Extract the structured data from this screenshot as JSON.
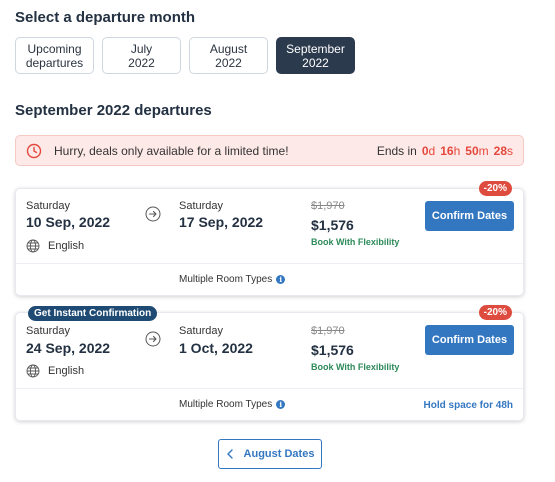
{
  "header": {
    "title": "Select a departure month"
  },
  "months": [
    {
      "line1": "Upcoming",
      "line2": "departures",
      "active": false
    },
    {
      "line1": "July",
      "line2": "2022",
      "active": false
    },
    {
      "line1": "August",
      "line2": "2022",
      "active": false
    },
    {
      "line1": "September",
      "line2": "2022",
      "active": true
    }
  ],
  "section": {
    "title": "September 2022 departures"
  },
  "deal": {
    "message": "Hurry, deals only available for a limited time!",
    "ends_label": "Ends in",
    "days": "0",
    "days_unit": "d",
    "hours": "16",
    "hours_unit": "h",
    "minutes": "50",
    "minutes_unit": "m",
    "seconds": "28",
    "seconds_unit": "s"
  },
  "departures": [
    {
      "badge": "",
      "discount": "-20%",
      "start_dow": "Saturday",
      "start_date": "10 Sep, 2022",
      "end_dow": "Saturday",
      "end_date": "17 Sep, 2022",
      "language": "English",
      "old_price": "$1,970",
      "price": "$1,576",
      "flex": "Book With Flexibility",
      "button": "Confirm Dates",
      "rooms": "Multiple Room Types",
      "hold": ""
    },
    {
      "badge": "Get Instant Confirmation",
      "discount": "-20%",
      "start_dow": "Saturday",
      "start_date": "24 Sep, 2022",
      "end_dow": "Saturday",
      "end_date": "1 Oct, 2022",
      "language": "English",
      "old_price": "$1,970",
      "price": "$1,576",
      "flex": "Book With Flexibility",
      "button": "Confirm Dates",
      "rooms": "Multiple Room Types",
      "hold": "Hold space for 48h"
    }
  ],
  "pagination": {
    "prev_label": "August Dates"
  },
  "colors": {
    "accent": "#3477c1",
    "dark": "#2c3a4e",
    "discount": "#de4c3f",
    "timer": "#e5483d",
    "flex": "#2d8a5a"
  }
}
